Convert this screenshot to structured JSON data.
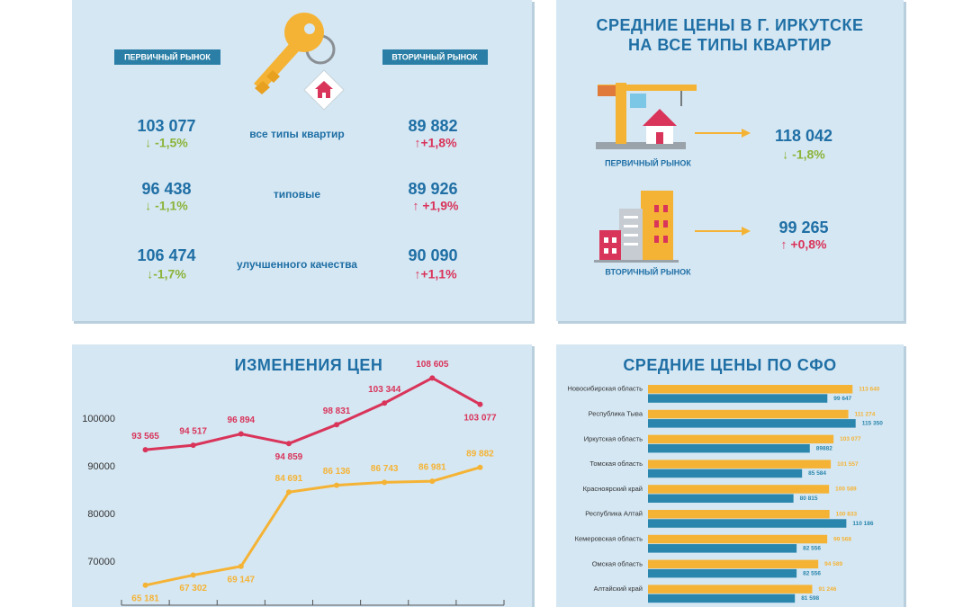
{
  "prices_panel": {
    "left_badge": "ПЕРВИЧНЫЙ РЫНОК",
    "right_badge": "ВТОРИЧНЫЙ РЫНОК",
    "rows": [
      {
        "label": "все типы квартир",
        "primary": "103 077",
        "primary_change": "↓ -1,5%",
        "secondary": "89 882",
        "secondary_change": "↑+1,8%"
      },
      {
        "label": "типовые",
        "primary": "96 438",
        "primary_change": "↓ -1,1%",
        "secondary": "89 926",
        "secondary_change": "↑ +1,9%"
      },
      {
        "label": "улучшенного качества",
        "primary": "106 474",
        "primary_change": "↓-1,7%",
        "secondary": "90 090",
        "secondary_change": "↑+1,1%"
      }
    ]
  },
  "irkutsk_panel": {
    "title_lines": [
      "СРЕДНИЕ ЦЕНЫ В Г. ИРКУТСКЕ",
      "НА ВСЕ ТИПЫ КВАРТИР"
    ],
    "markets": [
      {
        "label": "ПЕРВИЧНЫЙ РЫНОК",
        "price": "118 042",
        "change": "↓ -1,8%"
      },
      {
        "label": "ВТОРИЧНЫЙ РЫНОК",
        "price": "99 265",
        "change": "↑ +0,8%"
      }
    ]
  },
  "chart_data": [
    {
      "type": "line",
      "title": "ИЗМЕНЕНИЯ ЦЕН",
      "categories": [
        null,
        null,
        null,
        null,
        null,
        null,
        null,
        null
      ],
      "series": [
        {
          "color": "#d9345a",
          "values": [
            93565,
            94517,
            96894,
            94859,
            98831,
            103344,
            108605,
            103077
          ],
          "value_labels": [
            "93 565",
            "94 517",
            "96 894",
            "94 859",
            "98 831",
            "103 344",
            "108 605",
            "103 077"
          ]
        },
        {
          "color": "#f5b335",
          "values": [
            65181,
            67302,
            69147,
            84691,
            86136,
            86743,
            86981,
            89882
          ],
          "value_labels": [
            "65 181",
            "67 302",
            "69 147",
            "84 691",
            "86 136",
            "86 743",
            "86 981",
            "89 882"
          ]
        }
      ],
      "ylim": [
        61000,
        113000
      ],
      "yticks": [
        70000,
        80000,
        90000,
        100000
      ]
    },
    {
      "type": "bar",
      "orientation": "horizontal",
      "title": "СРЕДНИЕ ЦЕНЫ ПО СФО",
      "categories": [
        "Новосибирская область",
        "Республика Тыва",
        "Иркутская область",
        "Томская область",
        "Красноярский край",
        "Республика Алтай",
        "Кемеровская область",
        "Омская область",
        "Алтайский край"
      ],
      "series": [
        {
          "color": "#f5b335",
          "values": [
            113640,
            111274,
            103077,
            101557,
            100589,
            100833,
            99568,
            94589,
            91246
          ],
          "value_labels": [
            "113 640",
            "111 274",
            "103 077",
            "101 557",
            "100 589",
            "100 833",
            "99 568",
            "94 589",
            "91 246"
          ]
        },
        {
          "color": "#2a86ad",
          "values": [
            99647,
            115350,
            89882,
            85584,
            80815,
            110186,
            82556,
            82556,
            81598
          ],
          "value_labels": [
            "99 647",
            "115 350",
            "89882",
            "85 584",
            "80 815",
            "110 186",
            "82 556",
            "82 556",
            "81 598"
          ]
        }
      ],
      "xlim": [
        0,
        125000
      ]
    }
  ]
}
